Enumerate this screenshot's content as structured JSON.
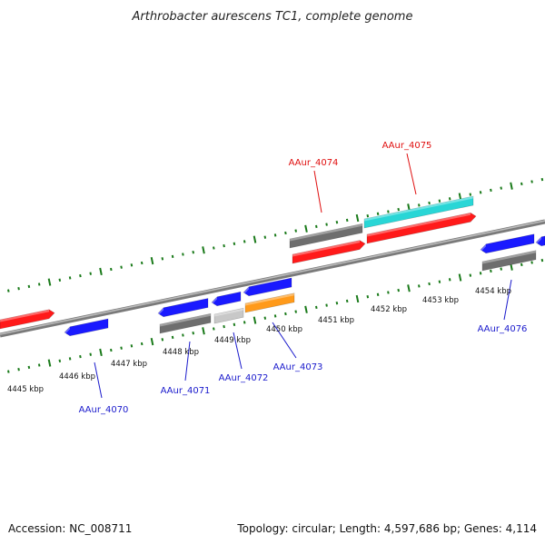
{
  "title": "Arthrobacter aurescens TC1, complete genome",
  "footer": {
    "accession": "Accession: NC_008711",
    "summary": "Topology: circular; Length: 4,597,686 bp; Genes: 4,114"
  },
  "colors": {
    "red": "#ff1a1a",
    "blue": "#1a1aff",
    "cyan": "#29d6d6",
    "dark_gray": "#6e6e6e",
    "light_gray": "#c8c8c8",
    "orange": "#ff9a1a",
    "tick_green": "#1a7a1a",
    "label_red": "#e01010",
    "label_blue": "#1a1acc",
    "backbone": "#909090"
  },
  "scale": {
    "unit": "kbp",
    "labels": [
      "4445 kbp",
      "4446 kbp",
      "4447 kbp",
      "4448 kbp",
      "4449 kbp",
      "4450 kbp",
      "4451 kbp",
      "4452 kbp",
      "4453 kbp",
      "4454 kbp"
    ]
  },
  "genes_labeled": [
    {
      "name": "AAur_4070",
      "strand": "-"
    },
    {
      "name": "AAur_4071",
      "strand": "-"
    },
    {
      "name": "AAur_4072",
      "strand": "-"
    },
    {
      "name": "AAur_4073",
      "strand": "-"
    },
    {
      "name": "AAur_4074",
      "strand": "+"
    },
    {
      "name": "AAur_4075",
      "strand": "+"
    },
    {
      "name": "AAur_4076",
      "strand": "-"
    }
  ]
}
